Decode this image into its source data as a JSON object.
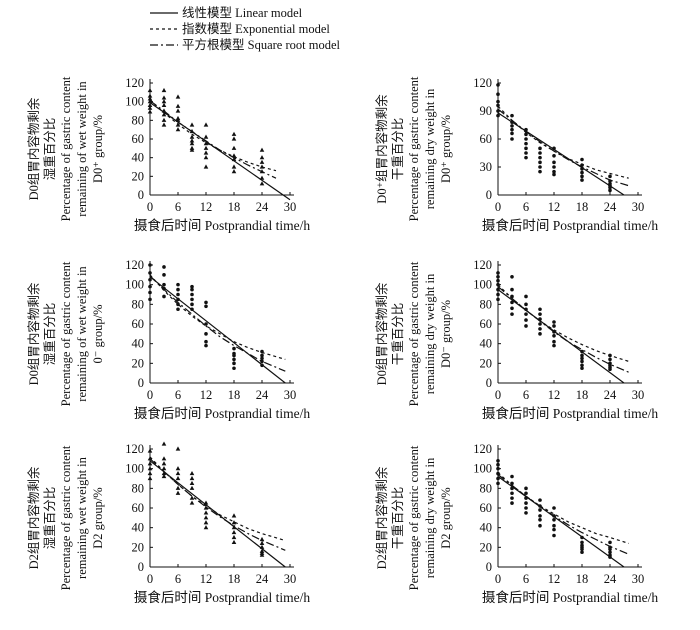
{
  "legend": {
    "entries": [
      {
        "label": "线性模型  Linear model",
        "style": "solid"
      },
      {
        "label": "指数模型  Exponential model",
        "style": "dotted"
      },
      {
        "label": "平方根模型  Square root model",
        "style": "dashdot"
      }
    ]
  },
  "chart_data": [
    {
      "type": "scatter",
      "ylabel_lines": [
        "D0组胃内容物剩余",
        "湿重百分比",
        "Percentage of gastric content",
        "remaining of wet weight in",
        "D0⁺ group/%"
      ],
      "xlabel": "摄食后时间  Postprandial time/h",
      "xticks": [
        "0",
        "6",
        "12",
        "18",
        "24",
        "30"
      ],
      "yticks": [
        "0",
        "20",
        "40",
        "60",
        "80",
        "100",
        "120"
      ],
      "xlim": [
        0,
        30
      ],
      "ylim": [
        0,
        120
      ],
      "marker": "triangle",
      "x": [
        0,
        0,
        0,
        0,
        0,
        0,
        0,
        3,
        3,
        3,
        3,
        3,
        3,
        3,
        3,
        6,
        6,
        6,
        6,
        6,
        6,
        6,
        9,
        9,
        9,
        9,
        9,
        9,
        9,
        12,
        12,
        12,
        12,
        12,
        12,
        12,
        18,
        18,
        18,
        18,
        18,
        18,
        18,
        24,
        24,
        24,
        24,
        24,
        24,
        24
      ],
      "y": [
        112,
        106,
        100,
        93,
        89,
        96,
        103,
        112,
        104,
        96,
        90,
        86,
        80,
        75,
        100,
        105,
        95,
        90,
        82,
        80,
        75,
        70,
        75,
        68,
        62,
        58,
        50,
        48,
        55,
        75,
        62,
        55,
        45,
        40,
        30,
        50,
        65,
        60,
        50,
        42,
        38,
        30,
        25,
        48,
        40,
        30,
        25,
        18,
        12,
        35
      ],
      "series": [
        {
          "name": "Linear model",
          "x": [
            0,
            30
          ],
          "y": [
            99,
            -5
          ]
        },
        {
          "name": "Exponential model",
          "x": [
            0,
            3,
            6,
            9,
            12,
            15,
            18,
            21,
            24,
            27
          ],
          "y": [
            102,
            88,
            76,
            65,
            56,
            48,
            41,
            35,
            30,
            26
          ]
        },
        {
          "name": "Square root model",
          "x": [
            0,
            3,
            6,
            9,
            12,
            15,
            18,
            21,
            24,
            27
          ],
          "y": [
            101,
            90,
            78,
            68,
            58,
            48,
            40,
            32,
            25,
            18
          ]
        }
      ]
    },
    {
      "type": "scatter",
      "ylabel_lines": [
        "D0⁺组胃内容物剩余",
        "干重百分比",
        "Percentage of gastric content",
        "remaining dry weight in",
        "D0⁺ group/%"
      ],
      "xlabel": "摄食后时间  Postprandial time/h",
      "xticks": [
        "0",
        "6",
        "12",
        "18",
        "24",
        "30"
      ],
      "yticks": [
        "0",
        "30",
        "60",
        "90",
        "120"
      ],
      "xlim": [
        0,
        30
      ],
      "ylim": [
        0,
        120
      ],
      "marker": "dot",
      "x": [
        0,
        0,
        0,
        0,
        0,
        0,
        3,
        3,
        3,
        3,
        3,
        3,
        6,
        6,
        6,
        6,
        6,
        6,
        6,
        9,
        9,
        9,
        9,
        9,
        9,
        12,
        12,
        12,
        12,
        12,
        12,
        18,
        18,
        18,
        18,
        18,
        18,
        24,
        24,
        24,
        24,
        24,
        24
      ],
      "y": [
        118,
        108,
        100,
        96,
        90,
        85,
        85,
        78,
        74,
        70,
        66,
        60,
        70,
        65,
        60,
        55,
        50,
        45,
        40,
        50,
        45,
        40,
        35,
        30,
        25,
        50,
        42,
        35,
        30,
        25,
        22,
        38,
        32,
        28,
        24,
        20,
        16,
        20,
        15,
        12,
        10,
        8,
        5
      ],
      "series": [
        {
          "name": "Linear model",
          "x": [
            0,
            27
          ],
          "y": [
            88,
            0
          ]
        },
        {
          "name": "Exponential model",
          "x": [
            0,
            3,
            6,
            9,
            12,
            15,
            18,
            21,
            24,
            28
          ],
          "y": [
            95,
            80,
            67,
            56,
            47,
            39,
            33,
            27,
            23,
            18
          ]
        },
        {
          "name": "Square root model",
          "x": [
            0,
            3,
            6,
            9,
            12,
            15,
            18,
            21,
            24,
            28
          ],
          "y": [
            92,
            80,
            68,
            57,
            47,
            38,
            30,
            23,
            16,
            10
          ]
        }
      ]
    },
    {
      "type": "scatter",
      "ylabel_lines": [
        "D0组胃内容物剩余",
        "湿重百分比",
        "Percentage of gastric content",
        "remaining of wet weight in",
        "0⁻ group/%"
      ],
      "xlabel": "摄食后时间  Postprandial time/h",
      "xticks": [
        "0",
        "6",
        "12",
        "18",
        "24",
        "30"
      ],
      "yticks": [
        "0",
        "20",
        "40",
        "60",
        "80",
        "100",
        "120"
      ],
      "xlim": [
        0,
        30
      ],
      "ylim": [
        0,
        120
      ],
      "marker": "dot",
      "x": [
        0,
        0,
        0,
        0,
        0,
        0,
        3,
        3,
        3,
        3,
        3,
        6,
        6,
        6,
        6,
        6,
        6,
        9,
        9,
        9,
        9,
        9,
        9,
        12,
        12,
        12,
        12,
        12,
        12,
        18,
        18,
        18,
        18,
        18,
        18,
        24,
        24,
        24,
        24,
        24
      ],
      "y": [
        120,
        112,
        105,
        98,
        92,
        85,
        118,
        110,
        100,
        96,
        88,
        100,
        95,
        90,
        85,
        80,
        75,
        98,
        95,
        90,
        85,
        80,
        75,
        82,
        78,
        60,
        50,
        42,
        38,
        35,
        30,
        28,
        24,
        20,
        15,
        32,
        28,
        25,
        22,
        18
      ],
      "series": [
        {
          "name": "Linear model",
          "x": [
            0,
            29
          ],
          "y": [
            108,
            0
          ]
        },
        {
          "name": "Exponential model",
          "x": [
            0,
            3,
            6,
            9,
            12,
            15,
            18,
            21,
            24,
            29
          ],
          "y": [
            110,
            94,
            80,
            68,
            58,
            50,
            42,
            36,
            31,
            24
          ]
        },
        {
          "name": "Square root model",
          "x": [
            0,
            3,
            6,
            9,
            12,
            15,
            18,
            21,
            24,
            29
          ],
          "y": [
            109,
            95,
            82,
            70,
            58,
            47,
            38,
            30,
            22,
            12
          ]
        }
      ]
    },
    {
      "type": "scatter",
      "ylabel_lines": [
        "D0组胃内容物剩余",
        "干重百分比",
        "Percentage of gastric content",
        "remaining dry weight in",
        "D0⁻ group/%"
      ],
      "xlabel": "摄食后时间  Postprandial time/h",
      "xticks": [
        "0",
        "6",
        "12",
        "18",
        "24",
        "30"
      ],
      "yticks": [
        "0",
        "20",
        "40",
        "60",
        "80",
        "100",
        "120"
      ],
      "xlim": [
        0,
        30
      ],
      "ylim": [
        0,
        120
      ],
      "marker": "dot",
      "x": [
        0,
        0,
        0,
        0,
        0,
        0,
        0,
        3,
        3,
        3,
        3,
        3,
        3,
        6,
        6,
        6,
        6,
        6,
        6,
        9,
        9,
        9,
        9,
        9,
        9,
        12,
        12,
        12,
        12,
        12,
        12,
        18,
        18,
        18,
        18,
        18,
        18,
        24,
        24,
        24,
        24,
        24,
        24
      ],
      "y": [
        112,
        108,
        104,
        100,
        95,
        90,
        85,
        108,
        95,
        88,
        82,
        76,
        70,
        88,
        80,
        75,
        70,
        64,
        58,
        75,
        70,
        65,
        60,
        55,
        50,
        62,
        58,
        52,
        48,
        42,
        38,
        32,
        28,
        25,
        22,
        18,
        15,
        28,
        24,
        20,
        18,
        16,
        14
      ],
      "series": [
        {
          "name": "Linear model",
          "x": [
            0,
            27
          ],
          "y": [
            95,
            0
          ]
        },
        {
          "name": "Exponential model",
          "x": [
            0,
            3,
            6,
            9,
            12,
            15,
            18,
            21,
            24,
            28
          ],
          "y": [
            100,
            86,
            74,
            63,
            54,
            46,
            39,
            33,
            28,
            22
          ]
        },
        {
          "name": "Square root model",
          "x": [
            0,
            3,
            6,
            9,
            12,
            15,
            18,
            21,
            24,
            28
          ],
          "y": [
            98,
            86,
            74,
            63,
            52,
            42,
            34,
            26,
            19,
            11
          ]
        }
      ]
    },
    {
      "type": "scatter",
      "ylabel_lines": [
        "D2组胃内容物剩余",
        "湿重百分比",
        "Percentage of gastric content",
        "remaining wet weight in",
        "D2 group/%"
      ],
      "xlabel": "摄食后时间  Postprandial time/h",
      "xticks": [
        "0",
        "6",
        "12",
        "18",
        "24",
        "30"
      ],
      "yticks": [
        "0",
        "20",
        "40",
        "60",
        "80",
        "100",
        "120"
      ],
      "xlim": [
        0,
        30
      ],
      "ylim": [
        0,
        120
      ],
      "marker": "triangle",
      "x": [
        0,
        0,
        0,
        0,
        0,
        0,
        3,
        3,
        3,
        3,
        3,
        3,
        6,
        6,
        6,
        6,
        6,
        6,
        9,
        9,
        9,
        9,
        9,
        9,
        12,
        12,
        12,
        12,
        12,
        12,
        18,
        18,
        18,
        18,
        18,
        18,
        24,
        24,
        24,
        24,
        24,
        24
      ],
      "y": [
        118,
        110,
        105,
        100,
        95,
        90,
        125,
        110,
        105,
        100,
        95,
        92,
        120,
        100,
        95,
        90,
        80,
        75,
        95,
        90,
        85,
        80,
        70,
        65,
        65,
        60,
        55,
        50,
        45,
        40,
        52,
        45,
        40,
        35,
        30,
        25,
        28,
        24,
        20,
        16,
        14,
        12
      ],
      "series": [
        {
          "name": "Linear model",
          "x": [
            0,
            29
          ],
          "y": [
            108,
            0
          ]
        },
        {
          "name": "Exponential model",
          "x": [
            0,
            3,
            6,
            9,
            12,
            15,
            18,
            21,
            24,
            29
          ],
          "y": [
            112,
            97,
            84,
            72,
            62,
            53,
            46,
            39,
            34,
            27
          ]
        },
        {
          "name": "Square root model",
          "x": [
            0,
            3,
            6,
            9,
            12,
            15,
            18,
            21,
            24,
            29
          ],
          "y": [
            110,
            97,
            84,
            72,
            61,
            51,
            42,
            34,
            27,
            17
          ]
        }
      ]
    },
    {
      "type": "scatter",
      "ylabel_lines": [
        "D2组胃内容物剩余",
        "干重百分比",
        "Percentage of gastric content",
        "remaining dry weight in",
        "D2 group/%"
      ],
      "xlabel": "摄食后时间  Postprandial time/h",
      "xticks": [
        "0",
        "6",
        "12",
        "18",
        "24",
        "30"
      ],
      "yticks": [
        "0",
        "20",
        "40",
        "60",
        "80",
        "100",
        "120"
      ],
      "xlim": [
        0,
        30
      ],
      "ylim": [
        0,
        120
      ],
      "marker": "dot",
      "x": [
        0,
        0,
        0,
        0,
        0,
        0,
        3,
        3,
        3,
        3,
        3,
        3,
        6,
        6,
        6,
        6,
        6,
        6,
        9,
        9,
        9,
        9,
        9,
        9,
        12,
        12,
        12,
        12,
        12,
        12,
        18,
        18,
        18,
        18,
        18,
        18,
        24,
        24,
        24,
        24,
        24,
        24
      ],
      "y": [
        108,
        104,
        100,
        95,
        90,
        85,
        92,
        85,
        80,
        75,
        70,
        65,
        80,
        75,
        70,
        65,
        60,
        55,
        68,
        62,
        58,
        52,
        48,
        42,
        60,
        52,
        48,
        42,
        38,
        32,
        30,
        25,
        22,
        20,
        18,
        15,
        25,
        20,
        18,
        15,
        12,
        10
      ],
      "series": [
        {
          "name": "Linear model",
          "x": [
            0,
            27
          ],
          "y": [
            92,
            0
          ]
        },
        {
          "name": "Exponential model",
          "x": [
            0,
            3,
            6,
            9,
            12,
            15,
            18,
            21,
            24,
            28
          ],
          "y": [
            96,
            83,
            72,
            62,
            54,
            46,
            40,
            34,
            30,
            24
          ]
        },
        {
          "name": "Square root model",
          "x": [
            0,
            3,
            6,
            9,
            12,
            15,
            18,
            21,
            24,
            28
          ],
          "y": [
            94,
            83,
            72,
            62,
            52,
            43,
            35,
            28,
            21,
            13
          ]
        }
      ]
    }
  ]
}
